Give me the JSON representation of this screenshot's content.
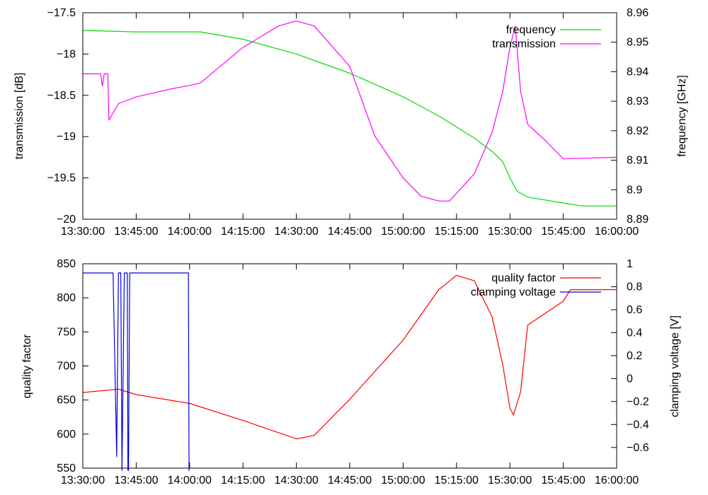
{
  "chart_data": [
    {
      "type": "line",
      "title": "",
      "xlabel": "",
      "ylabel": "transmission [dB]",
      "y2label": "frequency [GHz]",
      "grid": false,
      "legend_position": "top-right",
      "x_ticks": [
        "13:30:00",
        "13:45:00",
        "14:00:00",
        "14:15:00",
        "14:30:00",
        "14:45:00",
        "15:00:00",
        "15:15:00",
        "15:30:00",
        "15:45:00",
        "16:00:00"
      ],
      "xlim": [
        "13:30:00",
        "16:00:00"
      ],
      "ylim": [
        -20,
        -17.5
      ],
      "y_ticks": [
        "-17.5",
        "-18",
        "-18.5",
        "-19",
        "-19.5",
        "-20"
      ],
      "y2lim": [
        8.89,
        8.96
      ],
      "y2_ticks": [
        "8.96",
        "8.95",
        "8.94",
        "8.93",
        "8.92",
        "8.91",
        "8.9",
        "8.89"
      ],
      "series": [
        {
          "name": "frequency",
          "axis": "y2",
          "color": "#00dd00",
          "x": [
            "13:30:00",
            "13:45:00",
            "14:00:00",
            "14:03:00",
            "14:15:00",
            "14:30:00",
            "14:45:00",
            "15:00:00",
            "15:10:00",
            "15:20:00",
            "15:25:00",
            "15:28:00",
            "15:30:00",
            "15:32:00",
            "15:35:00",
            "15:45:00",
            "15:50:00",
            "16:00:00"
          ],
          "values": [
            8.954,
            8.9535,
            8.9535,
            8.9535,
            8.951,
            8.946,
            8.9395,
            8.9315,
            8.925,
            8.9175,
            8.913,
            8.9095,
            8.904,
            8.8995,
            8.8975,
            8.8955,
            8.8945,
            8.8945
          ]
        },
        {
          "name": "transmission",
          "axis": "y",
          "color": "#ff00ff",
          "x": [
            "13:30:00",
            "13:35:00",
            "13:35:30",
            "13:36:00",
            "13:37:00",
            "13:37:20",
            "13:40:00",
            "13:45:00",
            "13:50:00",
            "13:55:00",
            "14:00:00",
            "14:03:00",
            "14:15:00",
            "14:25:00",
            "14:30:00",
            "14:35:00",
            "14:45:00",
            "14:52:00",
            "15:00:00",
            "15:05:00",
            "15:10:00",
            "15:13:00",
            "15:20:00",
            "15:25:00",
            "15:28:00",
            "15:30:00",
            "15:31:30",
            "15:33:00",
            "15:35:00",
            "15:40:00",
            "15:45:00",
            "16:00:00"
          ],
          "values": [
            -18.24,
            -18.24,
            -18.39,
            -18.24,
            -18.24,
            -18.8,
            -18.6,
            -18.52,
            -18.47,
            -18.42,
            -18.38,
            -18.35,
            -17.92,
            -17.66,
            -17.6,
            -17.66,
            -18.15,
            -18.99,
            -19.5,
            -19.72,
            -19.78,
            -19.78,
            -19.45,
            -18.95,
            -18.45,
            -17.92,
            -17.66,
            -18.45,
            -18.85,
            -19.05,
            -19.27,
            -19.25
          ]
        }
      ]
    },
    {
      "type": "line",
      "title": "",
      "xlabel": "",
      "ylabel": "quality factor",
      "y2label": "clamping voltage [V]",
      "grid": false,
      "legend_position": "top-right",
      "x_ticks": [
        "13:30:00",
        "13:45:00",
        "14:00:00",
        "14:15:00",
        "14:30:00",
        "14:45:00",
        "15:00:00",
        "15:15:00",
        "15:30:00",
        "15:45:00",
        "16:00:00"
      ],
      "xlim": [
        "13:30:00",
        "16:00:00"
      ],
      "ylim": [
        550,
        850
      ],
      "y_ticks": [
        "850",
        "800",
        "750",
        "700",
        "650",
        "600",
        "550"
      ],
      "y2lim": [
        -0.78,
        1.0
      ],
      "y2_ticks": [
        "1",
        "0.8",
        "0.6",
        "0.4",
        "0.2",
        "0",
        "-0.2",
        "-0.4",
        "-0.6"
      ],
      "series": [
        {
          "name": "quality factor",
          "axis": "y",
          "color": "#ff0000",
          "x": [
            "13:30:00",
            "13:40:00",
            "13:45:00",
            "14:00:00",
            "14:15:00",
            "14:30:00",
            "14:35:00",
            "14:45:00",
            "15:00:00",
            "15:10:00",
            "15:15:00",
            "15:20:00",
            "15:25:00",
            "15:28:00",
            "15:30:00",
            "15:31:00",
            "15:33:00",
            "15:35:00",
            "15:45:00",
            "15:47:00",
            "16:00:00"
          ],
          "values": [
            661,
            666,
            658,
            645,
            620,
            593,
            598,
            651,
            738,
            812,
            833,
            825,
            772,
            702,
            638,
            628,
            662,
            760,
            795,
            812,
            812
          ]
        },
        {
          "name": "clamping voltage",
          "axis": "y2",
          "color": "#0000dd",
          "x": [
            "13:30:00",
            "13:38:30",
            "13:39:30",
            "13:40:00",
            "13:40:40",
            "13:41:00",
            "13:41:40",
            "13:42:30",
            "13:42:40",
            "13:42:50",
            "13:43:10",
            "13:43:20",
            "13:59:40",
            "13:59:50",
            "14:00:00"
          ],
          "values": [
            0.92,
            0.92,
            -0.68,
            0.92,
            0.92,
            -0.8,
            0.92,
            0.92,
            -0.8,
            -0.8,
            0.92,
            0.92,
            0.92,
            -0.8,
            -0.8
          ]
        }
      ]
    }
  ]
}
